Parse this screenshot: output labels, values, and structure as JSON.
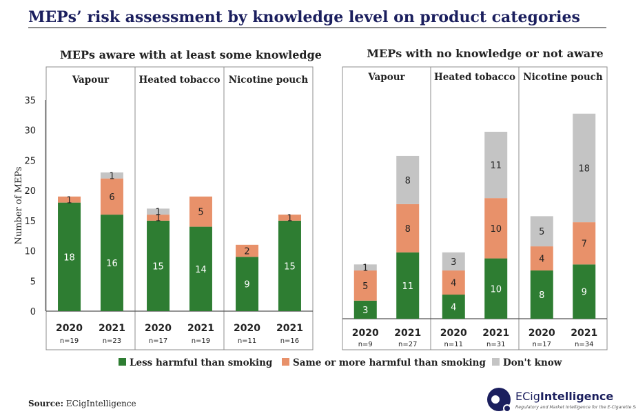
{
  "title": "MEPs’ risk assessment by knowledge level on product categories",
  "source_label": "Source:",
  "source_value": "ECigIntelligence",
  "brand": {
    "name_part1": "ECig",
    "name_part2": "Intelligence",
    "tagline": "Regulatory and Market Intelligence for the E-Cigarette Sector"
  },
  "colors": {
    "title": "#1b1f5e",
    "less": "#2e7d32",
    "same": "#e8916a",
    "dontknow": "#c4c4c4",
    "frame": "#8c8c8c",
    "brand": "#1b1f5e"
  },
  "legend": [
    {
      "key": "less",
      "label": "Less harmful than smoking"
    },
    {
      "key": "same",
      "label": "Same or more harmful than smoking"
    },
    {
      "key": "dontknow",
      "label": "Don't know"
    }
  ],
  "chart_data": [
    {
      "type": "bar",
      "stacked": true,
      "title": "MEPs aware with at least some knowledge",
      "ylabel": "Number of MEPs",
      "ylim": [
        0,
        35
      ],
      "yticks": [
        0,
        5,
        10,
        15,
        20,
        25,
        30,
        35
      ],
      "groups": [
        "Vapour",
        "Heated tobacco",
        "Nicotine pouch"
      ],
      "categories": [
        "2020",
        "2021",
        "2020",
        "2021",
        "2020",
        "2021"
      ],
      "n_labels": [
        "n=19",
        "n=23",
        "n=17",
        "n=19",
        "n=11",
        "n=16"
      ],
      "series": [
        {
          "name": "Less harmful than smoking",
          "key": "less",
          "values": [
            18,
            16,
            15,
            14,
            9,
            15
          ]
        },
        {
          "name": "Same or more harmful than smoking",
          "key": "same",
          "values": [
            1,
            6,
            1,
            5,
            2,
            1
          ]
        },
        {
          "name": "Don't know",
          "key": "dontknow",
          "values": [
            0,
            1,
            1,
            0,
            0,
            0
          ]
        }
      ]
    },
    {
      "type": "bar",
      "stacked": true,
      "title": "MEPs with no knowledge or not aware",
      "ylim": [
        0,
        35
      ],
      "groups": [
        "Vapour",
        "Heated tobacco",
        "Nicotine pouch"
      ],
      "categories": [
        "2020",
        "2021",
        "2020",
        "2021",
        "2020",
        "2021"
      ],
      "n_labels": [
        "n=9",
        "n=27",
        "n=11",
        "n=31",
        "n=17",
        "n=34"
      ],
      "series": [
        {
          "name": "Less harmful than smoking",
          "key": "less",
          "values": [
            3,
            11,
            4,
            10,
            8,
            9
          ]
        },
        {
          "name": "Same or more harmful than smoking",
          "key": "same",
          "values": [
            5,
            8,
            4,
            10,
            4,
            7
          ]
        },
        {
          "name": "Don't know",
          "key": "dontknow",
          "values": [
            1,
            8,
            3,
            11,
            5,
            18
          ]
        }
      ]
    }
  ]
}
